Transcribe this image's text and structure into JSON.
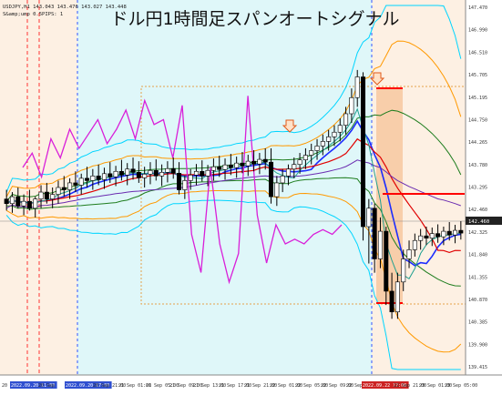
{
  "title": "ドル円1時間足スパンオートシグナル",
  "header_lines": [
    "USDJPY,H1  143.043 143.476 143.027 143.448",
    "S&amp;ump 0.5PIPS: 1"
  ],
  "chart_data": {
    "type": "candlestick",
    "title": "ドル円1時間足スパンオートシグナル",
    "symbol": "USDJPY",
    "timeframe": "H1",
    "ylim": [
      139.5,
      147.4
    ],
    "y_ticks": [
      "147.470",
      "146.990",
      "146.510",
      "145.705",
      "145.195",
      "144.750",
      "144.265",
      "143.780",
      "143.295",
      "142.460",
      "142.325",
      "141.840",
      "141.355",
      "140.870",
      "140.385",
      "139.900",
      "139.415"
    ],
    "current_price": "142.460",
    "x_ticks": [
      "20 Sep 2022",
      "2022.09.20 11:00",
      "20 Sep",
      "2022.09.20 17:00",
      "20 Sep 21:00",
      "21 Sep 01:00",
      "21 Sep 05:00",
      "21 Sep 09:00",
      "21 Sep 13:00",
      "21 Sep 17:00",
      "21 Sep 21:00",
      "22 Sep 01:00",
      "22 Sep 05:00",
      "22 Sep 09:00",
      "22 Sep 13:00",
      "22 Sep 17:00",
      "2022.09.22 17:00",
      "22 Sep 21:00",
      "23 Sep 01:00",
      "23 Sep 05:00"
    ],
    "highlighted_ticks": [
      "2022.09.20 11:00",
      "2022.09.20 17:00",
      "2022.09.22 17:00"
    ],
    "signal_markers": [
      "down-arrow",
      "down-arrow"
    ],
    "candles": [
      {
        "o": 143.2,
        "h": 143.4,
        "l": 142.95,
        "c": 143.1
      },
      {
        "o": 143.1,
        "h": 143.35,
        "l": 142.9,
        "c": 143.25
      },
      {
        "o": 143.25,
        "h": 143.45,
        "l": 143.0,
        "c": 143.05
      },
      {
        "o": 143.05,
        "h": 143.3,
        "l": 142.85,
        "c": 143.15
      },
      {
        "o": 143.15,
        "h": 143.4,
        "l": 142.95,
        "c": 143.0
      },
      {
        "o": 143.0,
        "h": 143.25,
        "l": 142.8,
        "c": 143.2
      },
      {
        "o": 143.2,
        "h": 143.5,
        "l": 143.0,
        "c": 143.35
      },
      {
        "o": 143.35,
        "h": 143.55,
        "l": 143.1,
        "c": 143.2
      },
      {
        "o": 143.2,
        "h": 143.45,
        "l": 143.0,
        "c": 143.3
      },
      {
        "o": 143.3,
        "h": 143.6,
        "l": 143.1,
        "c": 143.45
      },
      {
        "o": 143.45,
        "h": 143.7,
        "l": 143.25,
        "c": 143.4
      },
      {
        "o": 143.4,
        "h": 143.65,
        "l": 143.2,
        "c": 143.55
      },
      {
        "o": 143.55,
        "h": 143.8,
        "l": 143.35,
        "c": 143.5
      },
      {
        "o": 143.5,
        "h": 143.75,
        "l": 143.3,
        "c": 143.65
      },
      {
        "o": 143.65,
        "h": 143.9,
        "l": 143.45,
        "c": 143.6
      },
      {
        "o": 143.6,
        "h": 143.85,
        "l": 143.4,
        "c": 143.7
      },
      {
        "o": 143.7,
        "h": 143.95,
        "l": 143.5,
        "c": 143.62
      },
      {
        "o": 143.62,
        "h": 143.88,
        "l": 143.42,
        "c": 143.75
      },
      {
        "o": 143.75,
        "h": 144.0,
        "l": 143.55,
        "c": 143.68
      },
      {
        "o": 143.68,
        "h": 143.92,
        "l": 143.48,
        "c": 143.8
      },
      {
        "o": 143.8,
        "h": 144.05,
        "l": 143.6,
        "c": 143.72
      },
      {
        "o": 143.72,
        "h": 143.98,
        "l": 143.5,
        "c": 143.85
      },
      {
        "o": 143.85,
        "h": 144.1,
        "l": 143.62,
        "c": 143.78
      },
      {
        "o": 143.78,
        "h": 144.02,
        "l": 143.55,
        "c": 143.66
      },
      {
        "o": 143.66,
        "h": 143.9,
        "l": 143.45,
        "c": 143.74
      },
      {
        "o": 143.74,
        "h": 144.0,
        "l": 143.52,
        "c": 143.82
      },
      {
        "o": 143.82,
        "h": 144.06,
        "l": 143.6,
        "c": 143.7
      },
      {
        "o": 143.7,
        "h": 143.95,
        "l": 143.48,
        "c": 143.78
      },
      {
        "o": 143.78,
        "h": 144.02,
        "l": 143.56,
        "c": 143.86
      },
      {
        "o": 143.86,
        "h": 144.1,
        "l": 143.64,
        "c": 143.76
      },
      {
        "o": 143.76,
        "h": 144.0,
        "l": 143.3,
        "c": 143.4
      },
      {
        "o": 143.4,
        "h": 143.7,
        "l": 143.2,
        "c": 143.6
      },
      {
        "o": 143.6,
        "h": 143.85,
        "l": 143.4,
        "c": 143.72
      },
      {
        "o": 143.72,
        "h": 143.96,
        "l": 143.5,
        "c": 143.8
      },
      {
        "o": 143.8,
        "h": 144.04,
        "l": 143.58,
        "c": 143.7
      },
      {
        "o": 143.7,
        "h": 143.94,
        "l": 143.48,
        "c": 143.82
      },
      {
        "o": 143.82,
        "h": 144.08,
        "l": 143.6,
        "c": 143.9
      },
      {
        "o": 143.9,
        "h": 144.14,
        "l": 143.68,
        "c": 143.84
      },
      {
        "o": 143.84,
        "h": 144.08,
        "l": 143.62,
        "c": 143.94
      },
      {
        "o": 143.94,
        "h": 144.18,
        "l": 143.72,
        "c": 143.88
      },
      {
        "o": 143.88,
        "h": 144.12,
        "l": 143.66,
        "c": 143.98
      },
      {
        "o": 143.98,
        "h": 144.22,
        "l": 143.76,
        "c": 143.92
      },
      {
        "o": 143.92,
        "h": 144.16,
        "l": 143.7,
        "c": 144.02
      },
      {
        "o": 144.02,
        "h": 144.26,
        "l": 143.8,
        "c": 143.96
      },
      {
        "o": 143.96,
        "h": 144.2,
        "l": 143.74,
        "c": 144.06
      },
      {
        "o": 144.06,
        "h": 144.3,
        "l": 143.84,
        "c": 144.0
      },
      {
        "o": 144.0,
        "h": 144.3,
        "l": 143.1,
        "c": 143.25
      },
      {
        "o": 143.25,
        "h": 143.7,
        "l": 143.05,
        "c": 143.55
      },
      {
        "o": 143.55,
        "h": 143.85,
        "l": 143.35,
        "c": 143.7
      },
      {
        "o": 143.7,
        "h": 143.95,
        "l": 143.5,
        "c": 143.85
      },
      {
        "o": 143.85,
        "h": 144.1,
        "l": 143.65,
        "c": 143.95
      },
      {
        "o": 143.95,
        "h": 144.2,
        "l": 143.75,
        "c": 144.05
      },
      {
        "o": 144.05,
        "h": 144.3,
        "l": 143.85,
        "c": 144.15
      },
      {
        "o": 144.15,
        "h": 144.4,
        "l": 143.95,
        "c": 144.25
      },
      {
        "o": 144.25,
        "h": 144.5,
        "l": 144.05,
        "c": 144.35
      },
      {
        "o": 144.35,
        "h": 144.6,
        "l": 144.15,
        "c": 144.45
      },
      {
        "o": 144.45,
        "h": 144.7,
        "l": 144.25,
        "c": 144.55
      },
      {
        "o": 144.55,
        "h": 144.8,
        "l": 144.35,
        "c": 144.65
      },
      {
        "o": 144.65,
        "h": 144.95,
        "l": 144.45,
        "c": 144.8
      },
      {
        "o": 144.8,
        "h": 145.2,
        "l": 144.6,
        "c": 145.05
      },
      {
        "o": 145.05,
        "h": 145.6,
        "l": 144.85,
        "c": 145.4
      },
      {
        "o": 145.4,
        "h": 146.0,
        "l": 145.2,
        "c": 145.85
      },
      {
        "o": 145.85,
        "h": 145.95,
        "l": 142.3,
        "c": 142.6
      },
      {
        "o": 142.6,
        "h": 143.2,
        "l": 141.8,
        "c": 143.0
      },
      {
        "o": 143.0,
        "h": 143.1,
        "l": 141.6,
        "c": 141.9
      },
      {
        "o": 141.9,
        "h": 142.8,
        "l": 141.7,
        "c": 142.5
      },
      {
        "o": 142.5,
        "h": 142.6,
        "l": 140.9,
        "c": 141.2
      },
      {
        "o": 141.2,
        "h": 141.6,
        "l": 140.6,
        "c": 140.75
      },
      {
        "o": 140.75,
        "h": 141.6,
        "l": 140.6,
        "c": 141.4
      },
      {
        "o": 141.4,
        "h": 142.1,
        "l": 141.2,
        "c": 141.9
      },
      {
        "o": 141.9,
        "h": 142.3,
        "l": 141.7,
        "c": 142.1
      },
      {
        "o": 142.1,
        "h": 142.45,
        "l": 141.95,
        "c": 142.3
      },
      {
        "o": 142.3,
        "h": 142.55,
        "l": 142.1,
        "c": 142.4
      },
      {
        "o": 142.4,
        "h": 142.6,
        "l": 142.2,
        "c": 142.35
      },
      {
        "o": 142.35,
        "h": 142.58,
        "l": 142.18,
        "c": 142.45
      },
      {
        "o": 142.45,
        "h": 142.65,
        "l": 142.25,
        "c": 142.38
      },
      {
        "o": 142.38,
        "h": 142.6,
        "l": 142.2,
        "c": 142.5
      },
      {
        "o": 142.5,
        "h": 142.7,
        "l": 142.3,
        "c": 142.42
      },
      {
        "o": 142.42,
        "h": 142.64,
        "l": 142.24,
        "c": 142.52
      },
      {
        "o": 142.52,
        "h": 142.72,
        "l": 142.32,
        "c": 142.46
      }
    ]
  }
}
